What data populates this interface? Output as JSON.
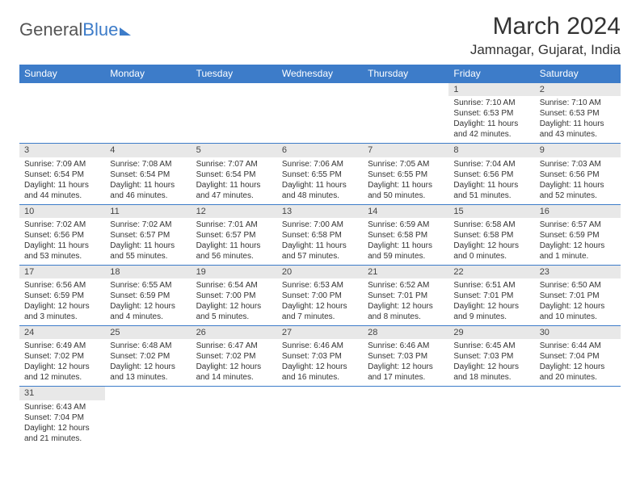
{
  "logo": {
    "part1": "General",
    "part2": "Blue"
  },
  "title": "March 2024",
  "location": "Jamnagar, Gujarat, India",
  "weekdays": [
    "Sunday",
    "Monday",
    "Tuesday",
    "Wednesday",
    "Thursday",
    "Friday",
    "Saturday"
  ],
  "colors": {
    "header_bg": "#3d7cc9",
    "header_text": "#ffffff",
    "daynum_bg": "#e8e8e8",
    "border": "#3d7cc9",
    "text": "#333333"
  },
  "weeks": [
    [
      null,
      null,
      null,
      null,
      null,
      {
        "n": "1",
        "sr": "Sunrise: 7:10 AM",
        "ss": "Sunset: 6:53 PM",
        "d1": "Daylight: 11 hours",
        "d2": "and 42 minutes."
      },
      {
        "n": "2",
        "sr": "Sunrise: 7:10 AM",
        "ss": "Sunset: 6:53 PM",
        "d1": "Daylight: 11 hours",
        "d2": "and 43 minutes."
      }
    ],
    [
      {
        "n": "3",
        "sr": "Sunrise: 7:09 AM",
        "ss": "Sunset: 6:54 PM",
        "d1": "Daylight: 11 hours",
        "d2": "and 44 minutes."
      },
      {
        "n": "4",
        "sr": "Sunrise: 7:08 AM",
        "ss": "Sunset: 6:54 PM",
        "d1": "Daylight: 11 hours",
        "d2": "and 46 minutes."
      },
      {
        "n": "5",
        "sr": "Sunrise: 7:07 AM",
        "ss": "Sunset: 6:54 PM",
        "d1": "Daylight: 11 hours",
        "d2": "and 47 minutes."
      },
      {
        "n": "6",
        "sr": "Sunrise: 7:06 AM",
        "ss": "Sunset: 6:55 PM",
        "d1": "Daylight: 11 hours",
        "d2": "and 48 minutes."
      },
      {
        "n": "7",
        "sr": "Sunrise: 7:05 AM",
        "ss": "Sunset: 6:55 PM",
        "d1": "Daylight: 11 hours",
        "d2": "and 50 minutes."
      },
      {
        "n": "8",
        "sr": "Sunrise: 7:04 AM",
        "ss": "Sunset: 6:56 PM",
        "d1": "Daylight: 11 hours",
        "d2": "and 51 minutes."
      },
      {
        "n": "9",
        "sr": "Sunrise: 7:03 AM",
        "ss": "Sunset: 6:56 PM",
        "d1": "Daylight: 11 hours",
        "d2": "and 52 minutes."
      }
    ],
    [
      {
        "n": "10",
        "sr": "Sunrise: 7:02 AM",
        "ss": "Sunset: 6:56 PM",
        "d1": "Daylight: 11 hours",
        "d2": "and 53 minutes."
      },
      {
        "n": "11",
        "sr": "Sunrise: 7:02 AM",
        "ss": "Sunset: 6:57 PM",
        "d1": "Daylight: 11 hours",
        "d2": "and 55 minutes."
      },
      {
        "n": "12",
        "sr": "Sunrise: 7:01 AM",
        "ss": "Sunset: 6:57 PM",
        "d1": "Daylight: 11 hours",
        "d2": "and 56 minutes."
      },
      {
        "n": "13",
        "sr": "Sunrise: 7:00 AM",
        "ss": "Sunset: 6:58 PM",
        "d1": "Daylight: 11 hours",
        "d2": "and 57 minutes."
      },
      {
        "n": "14",
        "sr": "Sunrise: 6:59 AM",
        "ss": "Sunset: 6:58 PM",
        "d1": "Daylight: 11 hours",
        "d2": "and 59 minutes."
      },
      {
        "n": "15",
        "sr": "Sunrise: 6:58 AM",
        "ss": "Sunset: 6:58 PM",
        "d1": "Daylight: 12 hours",
        "d2": "and 0 minutes."
      },
      {
        "n": "16",
        "sr": "Sunrise: 6:57 AM",
        "ss": "Sunset: 6:59 PM",
        "d1": "Daylight: 12 hours",
        "d2": "and 1 minute."
      }
    ],
    [
      {
        "n": "17",
        "sr": "Sunrise: 6:56 AM",
        "ss": "Sunset: 6:59 PM",
        "d1": "Daylight: 12 hours",
        "d2": "and 3 minutes."
      },
      {
        "n": "18",
        "sr": "Sunrise: 6:55 AM",
        "ss": "Sunset: 6:59 PM",
        "d1": "Daylight: 12 hours",
        "d2": "and 4 minutes."
      },
      {
        "n": "19",
        "sr": "Sunrise: 6:54 AM",
        "ss": "Sunset: 7:00 PM",
        "d1": "Daylight: 12 hours",
        "d2": "and 5 minutes."
      },
      {
        "n": "20",
        "sr": "Sunrise: 6:53 AM",
        "ss": "Sunset: 7:00 PM",
        "d1": "Daylight: 12 hours",
        "d2": "and 7 minutes."
      },
      {
        "n": "21",
        "sr": "Sunrise: 6:52 AM",
        "ss": "Sunset: 7:01 PM",
        "d1": "Daylight: 12 hours",
        "d2": "and 8 minutes."
      },
      {
        "n": "22",
        "sr": "Sunrise: 6:51 AM",
        "ss": "Sunset: 7:01 PM",
        "d1": "Daylight: 12 hours",
        "d2": "and 9 minutes."
      },
      {
        "n": "23",
        "sr": "Sunrise: 6:50 AM",
        "ss": "Sunset: 7:01 PM",
        "d1": "Daylight: 12 hours",
        "d2": "and 10 minutes."
      }
    ],
    [
      {
        "n": "24",
        "sr": "Sunrise: 6:49 AM",
        "ss": "Sunset: 7:02 PM",
        "d1": "Daylight: 12 hours",
        "d2": "and 12 minutes."
      },
      {
        "n": "25",
        "sr": "Sunrise: 6:48 AM",
        "ss": "Sunset: 7:02 PM",
        "d1": "Daylight: 12 hours",
        "d2": "and 13 minutes."
      },
      {
        "n": "26",
        "sr": "Sunrise: 6:47 AM",
        "ss": "Sunset: 7:02 PM",
        "d1": "Daylight: 12 hours",
        "d2": "and 14 minutes."
      },
      {
        "n": "27",
        "sr": "Sunrise: 6:46 AM",
        "ss": "Sunset: 7:03 PM",
        "d1": "Daylight: 12 hours",
        "d2": "and 16 minutes."
      },
      {
        "n": "28",
        "sr": "Sunrise: 6:46 AM",
        "ss": "Sunset: 7:03 PM",
        "d1": "Daylight: 12 hours",
        "d2": "and 17 minutes."
      },
      {
        "n": "29",
        "sr": "Sunrise: 6:45 AM",
        "ss": "Sunset: 7:03 PM",
        "d1": "Daylight: 12 hours",
        "d2": "and 18 minutes."
      },
      {
        "n": "30",
        "sr": "Sunrise: 6:44 AM",
        "ss": "Sunset: 7:04 PM",
        "d1": "Daylight: 12 hours",
        "d2": "and 20 minutes."
      }
    ],
    [
      {
        "n": "31",
        "sr": "Sunrise: 6:43 AM",
        "ss": "Sunset: 7:04 PM",
        "d1": "Daylight: 12 hours",
        "d2": "and 21 minutes."
      },
      null,
      null,
      null,
      null,
      null,
      null
    ]
  ]
}
